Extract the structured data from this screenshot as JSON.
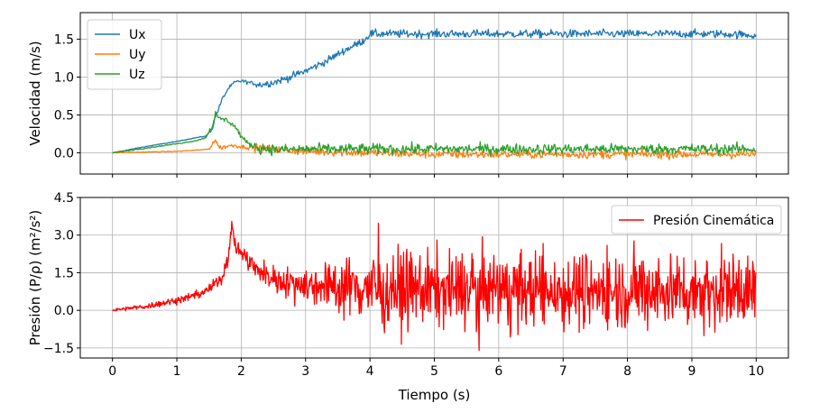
{
  "chart_data": [
    {
      "type": "line",
      "xlabel": "",
      "ylabel": "Velocidad (m/s)",
      "xlim": [
        -0.5,
        10.5
      ],
      "ylim": [
        -0.28,
        1.85
      ],
      "xticks": [
        0,
        1,
        2,
        3,
        4,
        5,
        6,
        7,
        8,
        9,
        10
      ],
      "yticks": [
        0.0,
        0.5,
        1.0,
        1.5
      ],
      "ytick_labels": [
        "0.0",
        "0.5",
        "1.0",
        "1.5"
      ],
      "grid": true,
      "legend_position": "upper-left",
      "series": [
        {
          "name": "Ux",
          "color": "#1f77b4",
          "noise": 0.035,
          "x": [
            0,
            0.5,
            1.0,
            1.3,
            1.45,
            1.55,
            1.6,
            1.65,
            1.7,
            1.8,
            1.9,
            2.0,
            2.1,
            2.3,
            2.5,
            2.7,
            3.0,
            3.3,
            3.6,
            3.9,
            4.0,
            4.3,
            4.6,
            5.0,
            5.5,
            6.0,
            6.5,
            7.0,
            7.5,
            8.0,
            8.5,
            9.0,
            9.5,
            10.0
          ],
          "y": [
            0.0,
            0.08,
            0.15,
            0.2,
            0.22,
            0.32,
            0.48,
            0.58,
            0.7,
            0.85,
            0.93,
            0.95,
            0.93,
            0.9,
            0.93,
            0.98,
            1.08,
            1.2,
            1.35,
            1.48,
            1.57,
            1.57,
            1.57,
            1.57,
            1.57,
            1.57,
            1.57,
            1.57,
            1.57,
            1.57,
            1.57,
            1.57,
            1.57,
            1.55
          ]
        },
        {
          "name": "Uy",
          "color": "#ff7f0e",
          "noise": 0.04,
          "x": [
            0,
            0.5,
            1.0,
            1.4,
            1.5,
            1.55,
            1.6,
            1.65,
            1.7,
            1.8,
            1.9,
            2.0,
            2.3,
            2.6,
            3.0,
            4.0,
            5.0,
            6.0,
            7.0,
            8.0,
            9.0,
            10.0
          ],
          "y": [
            0.0,
            0.01,
            0.02,
            0.04,
            0.05,
            0.12,
            0.17,
            0.08,
            0.07,
            0.09,
            0.1,
            0.08,
            0.06,
            0.04,
            0.02,
            0.0,
            -0.02,
            -0.02,
            -0.02,
            -0.02,
            -0.02,
            -0.02
          ]
        },
        {
          "name": "Uz",
          "color": "#2ca02c",
          "noise": 0.05,
          "x": [
            0,
            0.5,
            1.0,
            1.3,
            1.45,
            1.55,
            1.6,
            1.65,
            1.7,
            1.8,
            1.9,
            2.0,
            2.1,
            2.3,
            2.6,
            3.0,
            4.0,
            5.0,
            6.0,
            7.0,
            8.0,
            9.0,
            10.0
          ],
          "y": [
            0.0,
            0.06,
            0.12,
            0.16,
            0.2,
            0.35,
            0.52,
            0.45,
            0.45,
            0.42,
            0.35,
            0.22,
            0.12,
            0.06,
            0.04,
            0.05,
            0.05,
            0.05,
            0.05,
            0.05,
            0.05,
            0.05,
            0.05
          ]
        }
      ]
    },
    {
      "type": "line",
      "xlabel": "Tiempo (s)",
      "ylabel": "Presión  (P/ρ) (m²/s²)",
      "xlim": [
        -0.5,
        10.5
      ],
      "ylim": [
        -1.9,
        4.5
      ],
      "xticks": [
        0,
        1,
        2,
        3,
        4,
        5,
        6,
        7,
        8,
        9,
        10
      ],
      "xtick_labels": [
        "0",
        "1",
        "2",
        "3",
        "4",
        "5",
        "6",
        "7",
        "8",
        "9",
        "10"
      ],
      "yticks": [
        -1.5,
        0.0,
        1.5,
        3.0,
        4.5
      ],
      "ytick_labels": [
        "−1.5",
        "0.0",
        "1.5",
        "3.0",
        "4.5"
      ],
      "grid": true,
      "legend_position": "upper-right",
      "series": [
        {
          "name": "Presión Cinemática",
          "color": "#ff0000",
          "x": [
            0,
            0.5,
            1.0,
            1.3,
            1.5,
            1.7,
            1.8,
            1.85,
            1.88,
            1.92,
            2.0,
            2.1,
            2.2,
            2.4,
            2.6,
            2.8,
            3.0,
            3.3,
            3.6,
            4.0,
            5.0,
            6.0,
            7.0,
            8.0,
            9.0,
            10.0
          ],
          "y": [
            0.0,
            0.15,
            0.4,
            0.6,
            0.85,
            1.3,
            2.2,
            3.3,
            3.0,
            2.5,
            2.35,
            2.0,
            1.7,
            1.35,
            1.2,
            1.1,
            1.05,
            1.0,
            0.95,
            0.9,
            0.85,
            0.8,
            0.8,
            0.8,
            0.8,
            0.8
          ],
          "noise_x": [
            0,
            1.5,
            1.9,
            2.5,
            3.3,
            4.0,
            10.0
          ],
          "noise_amp": [
            0.03,
            0.1,
            0.18,
            0.25,
            0.45,
            0.75,
            0.75
          ]
        }
      ]
    }
  ]
}
